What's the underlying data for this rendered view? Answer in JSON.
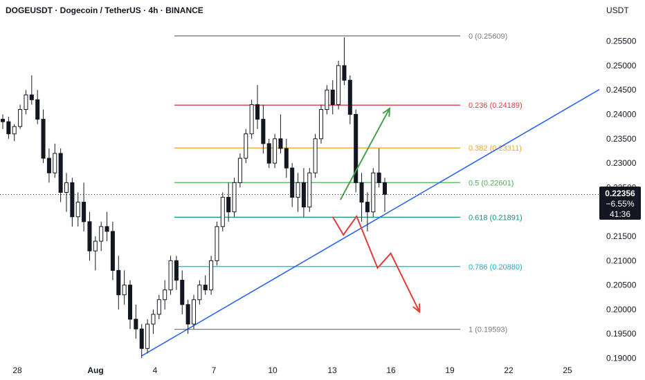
{
  "header": {
    "title": "DOGEUSDT · Dogecoin / TetherUS · 4h · BINANCE",
    "currency": "USDT"
  },
  "price_badge": {
    "price": "0.22356",
    "change": "−6.55%",
    "countdown": "41:36",
    "value": 0.22356
  },
  "colors": {
    "up": "#131722",
    "down": "#131722",
    "trendline": "#2962ff",
    "bullish_arrow": "#43a047",
    "bearish_arrow": "#e53935",
    "badge_bg": "#131722"
  },
  "chart_data": {
    "type": "candlestick",
    "x_axis": {
      "ticks": [
        "28",
        "Aug",
        "4",
        "7",
        "10",
        "13",
        "16",
        "19",
        "22",
        "25"
      ]
    },
    "y_axis": {
      "ticks": [
        "0.25500",
        "0.25000",
        "0.24500",
        "0.24000",
        "0.23500",
        "0.23000",
        "0.22500",
        "0.22000",
        "0.21500",
        "0.21000",
        "0.20500",
        "0.20000",
        "0.19500",
        "0.19000"
      ],
      "ylim": [
        0.1895,
        0.2592
      ]
    },
    "fib_levels": [
      {
        "label": "0 (0.25609)",
        "value": 0.25609,
        "color": "#787b86"
      },
      {
        "label": "0.236 (0.24189)",
        "value": 0.24189,
        "color": "#e0383e"
      },
      {
        "label": "0.382 (0.23311)",
        "value": 0.23311,
        "color": "#f5a623"
      },
      {
        "label": "0.5 (0.22601)",
        "value": 0.22601,
        "color": "#4caf50"
      },
      {
        "label": "0.618 (0.21891)",
        "value": 0.21891,
        "color": "#089981"
      },
      {
        "label": "0.786 (0.20880)",
        "value": 0.2088,
        "color": "#00bcd4"
      },
      {
        "label": "1 (0.19593)",
        "value": 0.19593,
        "color": "#787b86"
      }
    ],
    "candles": [
      [
        0.239,
        0.24,
        0.237,
        0.2385
      ],
      [
        0.2385,
        0.2395,
        0.235,
        0.236
      ],
      [
        0.236,
        0.238,
        0.2345,
        0.2375
      ],
      [
        0.2375,
        0.242,
        0.237,
        0.241
      ],
      [
        0.241,
        0.245,
        0.24,
        0.244
      ],
      [
        0.244,
        0.248,
        0.242,
        0.243
      ],
      [
        0.243,
        0.245,
        0.238,
        0.239
      ],
      [
        0.239,
        0.241,
        0.23,
        0.231
      ],
      [
        0.231,
        0.233,
        0.226,
        0.228
      ],
      [
        0.228,
        0.234,
        0.227,
        0.232
      ],
      [
        0.232,
        0.233,
        0.222,
        0.224
      ],
      [
        0.224,
        0.228,
        0.22,
        0.226
      ],
      [
        0.226,
        0.227,
        0.217,
        0.219
      ],
      [
        0.219,
        0.224,
        0.217,
        0.222
      ],
      [
        0.222,
        0.226,
        0.216,
        0.218
      ],
      [
        0.218,
        0.22,
        0.21,
        0.212
      ],
      [
        0.212,
        0.215,
        0.208,
        0.214
      ],
      [
        0.214,
        0.218,
        0.212,
        0.217
      ],
      [
        0.217,
        0.22,
        0.214,
        0.216
      ],
      [
        0.216,
        0.218,
        0.206,
        0.208
      ],
      [
        0.208,
        0.211,
        0.2,
        0.203
      ],
      [
        0.203,
        0.208,
        0.201,
        0.205
      ],
      [
        0.205,
        0.206,
        0.196,
        0.198
      ],
      [
        0.198,
        0.201,
        0.194,
        0.196
      ],
      [
        0.196,
        0.197,
        0.19,
        0.192
      ],
      [
        0.192,
        0.198,
        0.191,
        0.197
      ],
      [
        0.197,
        0.2,
        0.195,
        0.199
      ],
      [
        0.199,
        0.203,
        0.198,
        0.202
      ],
      [
        0.202,
        0.206,
        0.2,
        0.204
      ],
      [
        0.204,
        0.211,
        0.203,
        0.21
      ],
      [
        0.21,
        0.211,
        0.204,
        0.206
      ],
      [
        0.206,
        0.208,
        0.199,
        0.201
      ],
      [
        0.201,
        0.202,
        0.195,
        0.197
      ],
      [
        0.197,
        0.203,
        0.196,
        0.202
      ],
      [
        0.202,
        0.206,
        0.201,
        0.205
      ],
      [
        0.205,
        0.207,
        0.203,
        0.204
      ],
      [
        0.204,
        0.211,
        0.203,
        0.21
      ],
      [
        0.21,
        0.218,
        0.209,
        0.217
      ],
      [
        0.217,
        0.224,
        0.216,
        0.223
      ],
      [
        0.223,
        0.226,
        0.218,
        0.22
      ],
      [
        0.22,
        0.227,
        0.219,
        0.226
      ],
      [
        0.226,
        0.232,
        0.225,
        0.231
      ],
      [
        0.231,
        0.237,
        0.23,
        0.236
      ],
      [
        0.236,
        0.243,
        0.235,
        0.242
      ],
      [
        0.242,
        0.246,
        0.237,
        0.239
      ],
      [
        0.239,
        0.242,
        0.232,
        0.234
      ],
      [
        0.234,
        0.235,
        0.229,
        0.23
      ],
      [
        0.23,
        0.236,
        0.229,
        0.235
      ],
      [
        0.235,
        0.24,
        0.232,
        0.233
      ],
      [
        0.233,
        0.235,
        0.227,
        0.229
      ],
      [
        0.229,
        0.23,
        0.221,
        0.223
      ],
      [
        0.223,
        0.228,
        0.22,
        0.226
      ],
      [
        0.226,
        0.229,
        0.219,
        0.221
      ],
      [
        0.221,
        0.229,
        0.22,
        0.228
      ],
      [
        0.228,
        0.236,
        0.227,
        0.235
      ],
      [
        0.235,
        0.242,
        0.234,
        0.241
      ],
      [
        0.241,
        0.246,
        0.24,
        0.245
      ],
      [
        0.245,
        0.247,
        0.24,
        0.242
      ],
      [
        0.242,
        0.251,
        0.241,
        0.25
      ],
      [
        0.25,
        0.2558,
        0.246,
        0.247
      ],
      [
        0.247,
        0.248,
        0.238,
        0.24
      ],
      [
        0.24,
        0.241,
        0.224,
        0.226
      ],
      [
        0.226,
        0.228,
        0.218,
        0.222
      ],
      [
        0.222,
        0.224,
        0.216,
        0.22
      ],
      [
        0.22,
        0.229,
        0.219,
        0.228
      ],
      [
        0.228,
        0.233,
        0.225,
        0.226
      ],
      [
        0.226,
        0.227,
        0.22,
        0.2236
      ]
    ],
    "trendline": {
      "from": [
        0.2,
        0.1905
      ],
      "to": [
        1.0,
        0.2451
      ]
    },
    "arrows": {
      "bullish": [
        [
          0.568,
          0.2225
        ],
        [
          0.65,
          0.2412
        ]
      ],
      "bearish": [
        [
          0.555,
          0.219
        ],
        [
          0.573,
          0.2153
        ],
        [
          0.595,
          0.2191
        ],
        [
          0.63,
          0.2085
        ],
        [
          0.652,
          0.2115
        ],
        [
          0.7,
          0.1995
        ]
      ]
    }
  }
}
